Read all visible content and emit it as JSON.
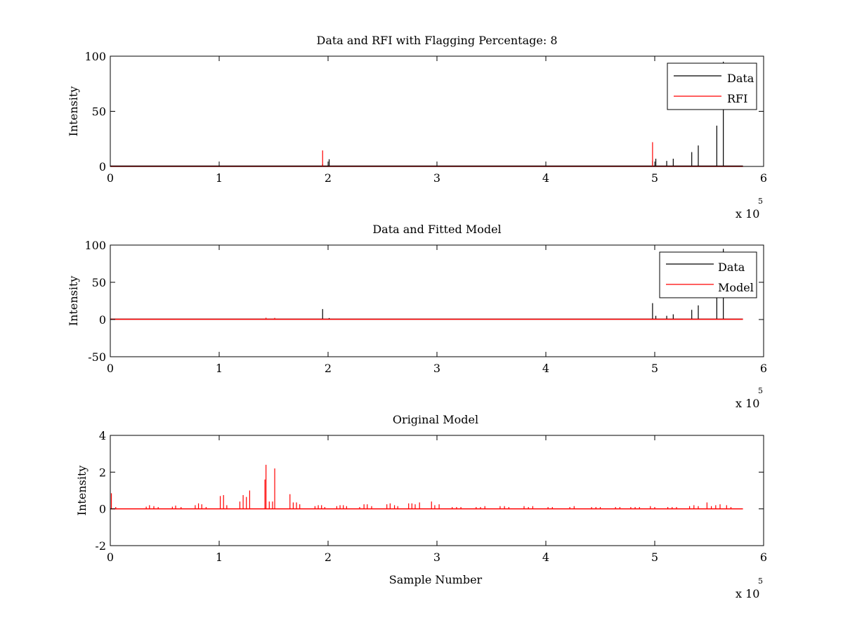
{
  "colors": {
    "data": "#000000",
    "rfi": "#ff0000",
    "model": "#ff0000",
    "axes": "#000000",
    "background": "#ffffff"
  },
  "chart_data": [
    {
      "type": "line",
      "title": "Data and RFI with Flagging Percentage: 8",
      "xlabel": "",
      "ylabel": "Intensity",
      "xlim": [
        0,
        600000
      ],
      "ylim": [
        0,
        100
      ],
      "xticks": [
        0,
        100000,
        200000,
        300000,
        400000,
        500000,
        600000
      ],
      "xtick_labels": [
        "0",
        "1",
        "2",
        "3",
        "4",
        "5",
        "6"
      ],
      "yticks": [
        0,
        50,
        100
      ],
      "ytick_labels": [
        "0",
        "50",
        "100"
      ],
      "x_exponent": {
        "base": "x 10",
        "power": "5"
      },
      "grid": false,
      "legend_position": "top-right",
      "legend": [
        "Data",
        "RFI"
      ],
      "series": [
        {
          "name": "Data",
          "color": "#000000",
          "baseline": 0.3,
          "x_extent": [
            0,
            581000
          ],
          "spikes": [
            [
              195000,
              2
            ],
            [
              201000,
              6.5
            ],
            [
              498000,
              5
            ],
            [
              501000,
              7
            ],
            [
              511000,
              5
            ],
            [
              517000,
              7
            ],
            [
              534000,
              13
            ],
            [
              540000,
              19
            ],
            [
              557000,
              37
            ],
            [
              563000,
              95
            ]
          ]
        },
        {
          "name": "RFI",
          "color": "#ff0000",
          "baseline": 0,
          "x_extent": [
            0,
            581000
          ],
          "spikes": [
            [
              195000,
              14.5
            ],
            [
              498000,
              22
            ]
          ]
        }
      ]
    },
    {
      "type": "line",
      "title": "Data and Fitted Model",
      "xlabel": "",
      "ylabel": "Intensity",
      "xlim": [
        0,
        600000
      ],
      "ylim": [
        -50,
        100
      ],
      "xticks": [
        0,
        100000,
        200000,
        300000,
        400000,
        500000,
        600000
      ],
      "xtick_labels": [
        "0",
        "1",
        "2",
        "3",
        "4",
        "5",
        "6"
      ],
      "yticks": [
        -50,
        0,
        50,
        100
      ],
      "ytick_labels": [
        "-50",
        "0",
        "50",
        "100"
      ],
      "x_exponent": {
        "base": "x 10",
        "power": "5"
      },
      "grid": false,
      "legend_position": "top-right",
      "legend": [
        "Data",
        "Model"
      ],
      "series": [
        {
          "name": "Data",
          "color": "#000000",
          "baseline": 0.5,
          "x_extent": [
            0,
            581000
          ],
          "spikes": [
            [
              195000,
              14
            ],
            [
              201000,
              2
            ],
            [
              498000,
              22
            ],
            [
              501000,
              5
            ],
            [
              511000,
              5
            ],
            [
              517000,
              7
            ],
            [
              534000,
              13
            ],
            [
              540000,
              19
            ],
            [
              557000,
              37
            ],
            [
              563000,
              95
            ]
          ]
        },
        {
          "name": "Model",
          "color": "#ff0000",
          "baseline": 0.3,
          "x_extent": [
            0,
            581000
          ],
          "spikes": [
            [
              2000,
              0.8
            ],
            [
              143000,
              2.4
            ],
            [
              151000,
              2.2
            ],
            [
              165000,
              0.8
            ]
          ]
        }
      ]
    },
    {
      "type": "line",
      "title": "Original Model",
      "xlabel": "Sample Number",
      "ylabel": "Intensity",
      "xlim": [
        0,
        600000
      ],
      "ylim": [
        -2,
        4
      ],
      "xticks": [
        0,
        100000,
        200000,
        300000,
        400000,
        500000,
        600000
      ],
      "xtick_labels": [
        "0",
        "1",
        "2",
        "3",
        "4",
        "5",
        "6"
      ],
      "yticks": [
        -2,
        0,
        2,
        4
      ],
      "ytick_labels": [
        "-2",
        "0",
        "2",
        "4"
      ],
      "x_exponent": {
        "base": "x 10",
        "power": "5"
      },
      "grid": false,
      "legend_position": "",
      "legend": [],
      "series": [
        {
          "color": "#ff0000",
          "baseline": 0,
          "x_extent": [
            0,
            581000
          ],
          "spikes": [
            [
              1000,
              0.85
            ],
            [
              5000,
              0.1
            ],
            [
              33000,
              0.12
            ],
            [
              36000,
              0.2
            ],
            [
              40000,
              0.15
            ],
            [
              44000,
              0.1
            ],
            [
              57000,
              0.12
            ],
            [
              60000,
              0.18
            ],
            [
              65000,
              0.1
            ],
            [
              78000,
              0.2
            ],
            [
              81000,
              0.3
            ],
            [
              84000,
              0.25
            ],
            [
              88000,
              0.1
            ],
            [
              101000,
              0.7
            ],
            [
              104000,
              0.75
            ],
            [
              107000,
              0.2
            ],
            [
              119000,
              0.4
            ],
            [
              122000,
              0.75
            ],
            [
              125000,
              0.65
            ],
            [
              128000,
              1.0
            ],
            [
              142000,
              1.6
            ],
            [
              143000,
              2.4
            ],
            [
              146000,
              0.4
            ],
            [
              149000,
              0.4
            ],
            [
              151000,
              2.2
            ],
            [
              165000,
              0.8
            ],
            [
              168000,
              0.35
            ],
            [
              171000,
              0.35
            ],
            [
              174000,
              0.25
            ],
            [
              188000,
              0.15
            ],
            [
              191000,
              0.2
            ],
            [
              194000,
              0.2
            ],
            [
              197000,
              0.1
            ],
            [
              208000,
              0.15
            ],
            [
              211000,
              0.2
            ],
            [
              214000,
              0.2
            ],
            [
              217000,
              0.15
            ],
            [
              229000,
              0.1
            ],
            [
              233000,
              0.25
            ],
            [
              236000,
              0.25
            ],
            [
              240000,
              0.15
            ],
            [
              254000,
              0.25
            ],
            [
              257000,
              0.3
            ],
            [
              261000,
              0.2
            ],
            [
              264000,
              0.15
            ],
            [
              274000,
              0.3
            ],
            [
              277000,
              0.3
            ],
            [
              280000,
              0.25
            ],
            [
              284000,
              0.35
            ],
            [
              295000,
              0.4
            ],
            [
              298000,
              0.2
            ],
            [
              302000,
              0.25
            ],
            [
              314000,
              0.1
            ],
            [
              318000,
              0.1
            ],
            [
              322000,
              0.1
            ],
            [
              336000,
              0.1
            ],
            [
              340000,
              0.1
            ],
            [
              344000,
              0.15
            ],
            [
              358000,
              0.15
            ],
            [
              362000,
              0.15
            ],
            [
              366000,
              0.1
            ],
            [
              380000,
              0.15
            ],
            [
              384000,
              0.1
            ],
            [
              388000,
              0.15
            ],
            [
              402000,
              0.1
            ],
            [
              406000,
              0.1
            ],
            [
              422000,
              0.1
            ],
            [
              426000,
              0.15
            ],
            [
              442000,
              0.1
            ],
            [
              446000,
              0.1
            ],
            [
              450000,
              0.1
            ],
            [
              464000,
              0.1
            ],
            [
              468000,
              0.1
            ],
            [
              478000,
              0.1
            ],
            [
              482000,
              0.1
            ],
            [
              486000,
              0.1
            ],
            [
              496000,
              0.15
            ],
            [
              500000,
              0.1
            ],
            [
              512000,
              0.1
            ],
            [
              516000,
              0.1
            ],
            [
              520000,
              0.1
            ],
            [
              532000,
              0.15
            ],
            [
              536000,
              0.2
            ],
            [
              540000,
              0.15
            ],
            [
              548000,
              0.35
            ],
            [
              552000,
              0.15
            ],
            [
              556000,
              0.2
            ],
            [
              560000,
              0.25
            ],
            [
              566000,
              0.2
            ],
            [
              570000,
              0.1
            ]
          ]
        }
      ]
    }
  ]
}
